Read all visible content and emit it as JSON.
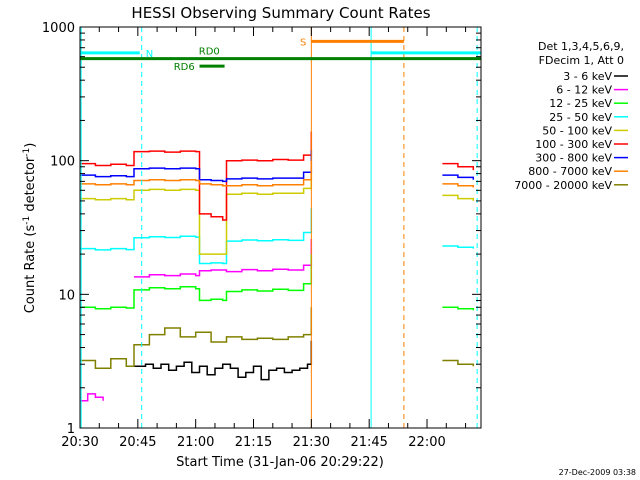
{
  "chart_data": {
    "type": "line",
    "title": "HESSI Observing Summary Count Rates",
    "xlabel": "Start Time (31-Jan-06 20:29:22)",
    "ylabel_prefix": "Count Rate (s",
    "ylabel_sup": "-1",
    "ylabel_mid": " detector",
    "ylabel_suffix": ")",
    "x_ticks": [
      "20:30",
      "20:45",
      "21:00",
      "21:15",
      "21:30",
      "21:45",
      "22:00"
    ],
    "x_tick_minutes": [
      30,
      45,
      60,
      75,
      90,
      105,
      120
    ],
    "xlim_minutes": [
      30,
      134
    ],
    "y_scale": "log",
    "ylim": [
      1,
      1000
    ],
    "y_ticks": [
      "1",
      "10",
      "100",
      "1000"
    ],
    "legend_header": [
      "Det 1,3,4,5,6,9,",
      "FDecim 1, Att 0"
    ],
    "series": [
      {
        "name": "3 - 6 keV",
        "color": "#000000",
        "segments": [
          {
            "x": [
              44,
              45,
              47,
              49,
              51,
              53,
              55,
              57,
              59,
              61,
              63,
              65,
              67,
              69,
              71,
              73,
              75,
              77,
              79,
              81,
              83,
              85,
              87,
              89,
              90
            ],
            "y": [
              2.9,
              2.9,
              3.0,
              2.8,
              3.0,
              2.7,
              2.9,
              3.1,
              2.6,
              2.9,
              2.5,
              2.8,
              3.0,
              2.8,
              2.4,
              2.6,
              2.9,
              2.3,
              2.7,
              2.8,
              2.6,
              2.7,
              2.8,
              3.0,
              4.5
            ]
          }
        ]
      },
      {
        "name": "6 - 12 keV",
        "color": "#ff00ff",
        "segments": [
          {
            "x": [
              30,
              32,
              34,
              36
            ],
            "y": [
              1.6,
              1.8,
              1.7,
              1.6
            ]
          },
          {
            "x": [
              44,
              48,
              52,
              56,
              60,
              61,
              64,
              68,
              72,
              76,
              80,
              84,
              88,
              90
            ],
            "y": [
              13.5,
              14.0,
              13.8,
              14.2,
              13.8,
              15.0,
              15.2,
              14.8,
              15.3,
              15.0,
              15.4,
              15.2,
              16.5,
              26
            ]
          }
        ]
      },
      {
        "name": "12 - 25 keV",
        "color": "#00ff00",
        "segments": [
          {
            "x": [
              30,
              34,
              38,
              42,
              44,
              48,
              52,
              56,
              60,
              61,
              64,
              67,
              68,
              72,
              76,
              80,
              84,
              88,
              90
            ],
            "y": [
              8.0,
              7.8,
              8.0,
              7.9,
              10.8,
              11.2,
              11.0,
              11.4,
              11.0,
              9.0,
              9.2,
              9.0,
              10.5,
              10.8,
              10.6,
              10.9,
              10.7,
              12.0,
              20
            ]
          },
          {
            "x": [
              124,
              128,
              132
            ],
            "y": [
              8.0,
              7.8,
              7.6
            ]
          }
        ]
      },
      {
        "name": "25 - 50 keV",
        "color": "#00ffff",
        "segments": [
          {
            "x": [
              30,
              34,
              38,
              42,
              44,
              48,
              52,
              56,
              60,
              61,
              64,
              67,
              68,
              72,
              76,
              80,
              84,
              88,
              90
            ],
            "y": [
              22.0,
              21.5,
              22.0,
              21.6,
              26.5,
              27.0,
              26.6,
              27.2,
              26.8,
              17.0,
              17.2,
              17.0,
              25.0,
              25.5,
              25.2,
              25.6,
              25.3,
              29.0,
              44
            ]
          },
          {
            "x": [
              124,
              128,
              132
            ],
            "y": [
              23.0,
              22.5,
              22.0
            ]
          }
        ]
      },
      {
        "name": "50 - 100 keV",
        "color": "#cccc00",
        "segments": [
          {
            "x": [
              30,
              34,
              38,
              42,
              44,
              48,
              52,
              56,
              60,
              61,
              64,
              67,
              68,
              72,
              76,
              80,
              84,
              88,
              90
            ],
            "y": [
              52,
              51,
              52,
              51,
              60,
              61,
              60,
              61,
              60,
              20,
              20,
              20,
              56,
              57,
              56,
              57,
              57,
              62,
              85
            ]
          },
          {
            "x": [
              124,
              128,
              132
            ],
            "y": [
              55,
              52,
              50
            ]
          }
        ]
      },
      {
        "name": "100 - 300 keV",
        "color": "#ff0000",
        "segments": [
          {
            "x": [
              30,
              34,
              38,
              42,
              44,
              48,
              52,
              56,
              60,
              61,
              64,
              67,
              68,
              72,
              76,
              80,
              84,
              88,
              90
            ],
            "y": [
              95,
              92,
              94,
              92,
              117,
              118,
              116,
              118,
              117,
              40,
              38,
              36,
              100,
              101,
              100,
              102,
              101,
              110,
              165
            ]
          },
          {
            "x": [
              124,
              128,
              132
            ],
            "y": [
              95,
              90,
              85
            ]
          }
        ]
      },
      {
        "name": "300 - 800 keV",
        "color": "#0000ff",
        "segments": [
          {
            "x": [
              30,
              34,
              38,
              42,
              44,
              48,
              52,
              56,
              60,
              61,
              64,
              67,
              68,
              72,
              76,
              80,
              84,
              88,
              90
            ],
            "y": [
              78,
              76,
              77,
              76,
              87,
              88,
              87,
              88,
              87,
              72,
              71,
              70,
              73,
              74,
              73,
              74,
              74,
              82,
              120
            ]
          },
          {
            "x": [
              124,
              128,
              132
            ],
            "y": [
              78,
              75,
              72
            ]
          }
        ]
      },
      {
        "name": "800 - 7000 keV",
        "color": "#ff8000",
        "segments": [
          {
            "x": [
              30,
              34,
              38,
              42,
              44,
              48,
              52,
              56,
              60,
              61,
              64,
              67,
              68,
              72,
              76,
              80,
              84,
              88,
              90
            ],
            "y": [
              67,
              66,
              67,
              66,
              71,
              72,
              71,
              72,
              71,
              67,
              66,
              65,
              65,
              66,
              65,
              66,
              66,
              72,
              100
            ]
          },
          {
            "x": [
              124,
              128,
              132
            ],
            "y": [
              67,
              65,
              63
            ]
          }
        ]
      },
      {
        "name": "7000 - 20000 keV",
        "color": "#808000",
        "segments": [
          {
            "x": [
              30,
              34,
              38,
              42,
              44,
              48,
              52,
              56,
              60,
              64,
              68,
              72,
              76,
              80,
              84,
              88,
              90
            ],
            "y": [
              3.2,
              2.8,
              3.3,
              2.9,
              4.2,
              5.0,
              5.6,
              4.8,
              5.2,
              4.4,
              4.8,
              4.6,
              4.7,
              4.6,
              4.8,
              5.0,
              8.0
            ]
          },
          {
            "x": [
              124,
              128,
              132
            ],
            "y": [
              3.2,
              3.0,
              2.9
            ]
          }
        ]
      }
    ],
    "annotations": [
      {
        "text": "N",
        "color": "#00ffff"
      },
      {
        "text": "RD0",
        "color": "#008000"
      },
      {
        "text": "RD6",
        "color": "#008000"
      },
      {
        "text": "S",
        "color": "#ff8000"
      }
    ],
    "flag_bars": [
      {
        "label": "N",
        "color": "#00ffff",
        "y": 640,
        "intervals": [
          [
            30,
            45.5
          ],
          [
            105.5,
            134
          ]
        ]
      },
      {
        "label": "RD0",
        "color": "#008000",
        "y": 580,
        "intervals": [
          [
            30,
            134
          ]
        ]
      },
      {
        "label": "RD6",
        "color": "#008000",
        "y": 510,
        "intervals": [
          [
            61,
            67.5
          ]
        ]
      },
      {
        "label": "S",
        "color": "#ff8000",
        "y": 780,
        "intervals": [
          [
            90,
            114
          ]
        ]
      }
    ],
    "vertical_markers": [
      {
        "x": 30.3,
        "color": "#00ffff",
        "style": "solid"
      },
      {
        "x": 46,
        "color": "#00ffff",
        "style": "dashed"
      },
      {
        "x": 90,
        "color": "#ff8000",
        "style": "solid"
      },
      {
        "x": 105.5,
        "color": "#00ffff",
        "style": "solid"
      },
      {
        "x": 114,
        "color": "#ff8000",
        "style": "dashed"
      },
      {
        "x": 133,
        "color": "#00ffff",
        "style": "dashed"
      }
    ],
    "grid": false,
    "legend_position": "top-right"
  },
  "footer": {
    "timestamp": "27-Dec-2009 03:38"
  }
}
